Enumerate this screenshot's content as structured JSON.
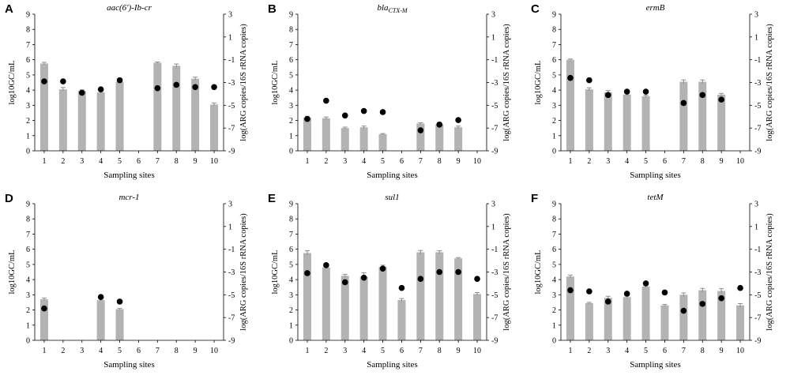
{
  "figure": {
    "chart_data": [
      {
        "type": "bar",
        "panel_label": "A",
        "title": "aac(6')-Ib-cr",
        "title_sub": "",
        "xlabel": "Sampling sites",
        "ylabel": "log10GC/mL",
        "ylabel_right": "log(ARG copies/16S rRNA copies)",
        "categories": [
          "1",
          "2",
          "3",
          "4",
          "5",
          "6",
          "7",
          "8",
          "9",
          "10"
        ],
        "ylim": [
          0,
          9
        ],
        "ylim_right": [
          -9,
          3
        ],
        "yticks": [
          "0",
          "1",
          "2",
          "3",
          "4",
          "5",
          "6",
          "7",
          "8",
          "9"
        ],
        "yticks_right": [
          "-9",
          "-7",
          "-5",
          "-3",
          "-1",
          "1",
          "3"
        ],
        "series": [
          {
            "name": "log10GC/mL",
            "axis": "left",
            "kind": "bar",
            "values": [
              5.75,
              4.05,
              3.95,
              3.85,
              4.55,
              null,
              5.8,
              5.6,
              4.75,
              3.05
            ],
            "errors": [
              0.08,
              0.12,
              0.06,
              0.06,
              0.1,
              null,
              0.05,
              0.12,
              0.1,
              0.1
            ]
          },
          {
            "name": "log(ARG copies/16S rRNA copies)",
            "axis": "right",
            "kind": "dot",
            "values": [
              -2.9,
              -2.9,
              -3.9,
              -3.6,
              -2.8,
              null,
              -3.5,
              -3.2,
              -3.4,
              -3.4
            ]
          }
        ]
      },
      {
        "type": "bar",
        "panel_label": "B",
        "title": "bla",
        "title_sub": "CTX-M",
        "xlabel": "Sampling sites",
        "ylabel": "log10GC/mL",
        "ylabel_right": "log(ARG copies/16S rRNA copies)",
        "categories": [
          "1",
          "2",
          "3",
          "4",
          "5",
          "6",
          "7",
          "8",
          "9",
          "10"
        ],
        "ylim": [
          0,
          9
        ],
        "ylim_right": [
          -9,
          3
        ],
        "yticks": [
          "0",
          "1",
          "2",
          "3",
          "4",
          "5",
          "6",
          "7",
          "8",
          "9"
        ],
        "yticks_right": [
          "-9",
          "-7",
          "-5",
          "-3",
          "-1",
          "1",
          "3"
        ],
        "series": [
          {
            "name": "log10GC/mL",
            "axis": "left",
            "kind": "bar",
            "values": [
              2.2,
              2.15,
              1.5,
              1.55,
              1.1,
              null,
              1.8,
              1.75,
              1.55,
              null
            ],
            "errors": [
              0.08,
              0.08,
              0.06,
              0.08,
              0.04,
              null,
              0.05,
              0.12,
              0.08,
              null
            ]
          },
          {
            "name": "log(ARG copies/16S rRNA copies)",
            "axis": "right",
            "kind": "dot",
            "values": [
              -6.2,
              -4.6,
              -5.9,
              -5.5,
              -5.6,
              null,
              -7.2,
              -6.7,
              -6.3,
              null
            ]
          }
        ]
      },
      {
        "type": "bar",
        "panel_label": "C",
        "title": "ermB",
        "title_sub": "",
        "xlabel": "Sampling sites",
        "ylabel": "log10GC/mL",
        "ylabel_right": "log(ARG copies/16S rRNA copies)",
        "categories": [
          "1",
          "2",
          "3",
          "4",
          "5",
          "6",
          "7",
          "8",
          "9",
          "10"
        ],
        "ylim": [
          0,
          9
        ],
        "ylim_right": [
          -9,
          3
        ],
        "yticks": [
          "0",
          "1",
          "2",
          "3",
          "4",
          "5",
          "6",
          "7",
          "8",
          "9"
        ],
        "yticks_right": [
          "-9",
          "-7",
          "-5",
          "-3",
          "-1",
          "1",
          "3"
        ],
        "series": [
          {
            "name": "log10GC/mL",
            "axis": "left",
            "kind": "bar",
            "values": [
              6.0,
              4.05,
              3.85,
              3.7,
              3.6,
              null,
              4.55,
              4.55,
              3.7,
              null
            ],
            "errors": [
              0.05,
              0.1,
              0.12,
              0.06,
              0.06,
              null,
              0.12,
              0.12,
              0.08,
              null
            ]
          },
          {
            "name": "log(ARG copies/16S rRNA copies)",
            "axis": "right",
            "kind": "dot",
            "values": [
              -2.6,
              -2.8,
              -4.1,
              -3.8,
              -3.8,
              null,
              -4.8,
              -4.1,
              -4.5,
              null
            ]
          }
        ]
      },
      {
        "type": "bar",
        "panel_label": "D",
        "title": "mcr-1",
        "title_sub": "",
        "xlabel": "Sampling sites",
        "ylabel": "log10GC/mL",
        "ylabel_right": "log(ARG copies/16S rRNA copies)",
        "categories": [
          "1",
          "2",
          "3",
          "4",
          "5",
          "6",
          "7",
          "8",
          "9",
          "10"
        ],
        "ylim": [
          0,
          9
        ],
        "ylim_right": [
          -9,
          3
        ],
        "yticks": [
          "0",
          "1",
          "2",
          "3",
          "4",
          "5",
          "6",
          "7",
          "8",
          "9"
        ],
        "yticks_right": [
          "-9",
          "-7",
          "-5",
          "-3",
          "-1",
          "1",
          "3"
        ],
        "series": [
          {
            "name": "log10GC/mL",
            "axis": "left",
            "kind": "bar",
            "values": [
              2.7,
              null,
              null,
              2.65,
              2.05,
              null,
              null,
              null,
              null,
              null
            ],
            "errors": [
              0.08,
              null,
              null,
              0.06,
              0.05,
              null,
              null,
              null,
              null,
              null
            ]
          },
          {
            "name": "log(ARG copies/16S rRNA copies)",
            "axis": "right",
            "kind": "dot",
            "values": [
              -6.2,
              null,
              null,
              -5.2,
              -5.6,
              null,
              null,
              null,
              null,
              null
            ]
          }
        ]
      },
      {
        "type": "bar",
        "panel_label": "E",
        "title": "sul1",
        "title_sub": "",
        "xlabel": "Sampling sites",
        "ylabel": "log10GC/mL",
        "ylabel_right": "log(ARG copies/16S rRNA copies)",
        "categories": [
          "1",
          "2",
          "3",
          "4",
          "5",
          "6",
          "7",
          "8",
          "9",
          "10"
        ],
        "ylim": [
          0,
          9
        ],
        "ylim_right": [
          -9,
          3
        ],
        "yticks": [
          "0",
          "1",
          "2",
          "3",
          "4",
          "5",
          "6",
          "7",
          "8",
          "9"
        ],
        "yticks_right": [
          "-9",
          "-7",
          "-5",
          "-3",
          "-1",
          "1",
          "3"
        ],
        "series": [
          {
            "name": "log10GC/mL",
            "axis": "left",
            "kind": "bar",
            "values": [
              5.75,
              4.8,
              4.25,
              4.2,
              4.85,
              2.65,
              5.8,
              5.8,
              5.4,
              3.05
            ],
            "errors": [
              0.15,
              0.06,
              0.1,
              0.25,
              0.1,
              0.1,
              0.12,
              0.1,
              0.05,
              0.1
            ]
          },
          {
            "name": "log(ARG copies/16S rRNA copies)",
            "axis": "right",
            "kind": "dot",
            "values": [
              -3.1,
              -2.4,
              -3.9,
              -3.5,
              -2.7,
              -4.4,
              -3.6,
              -3.0,
              -3.0,
              -3.6
            ]
          }
        ]
      },
      {
        "type": "bar",
        "panel_label": "F",
        "title": "tetM",
        "title_sub": "",
        "xlabel": "Sampling sites",
        "ylabel": "log10GC/mL",
        "ylabel_right": "log(ARG copies/16S rRNA copies)",
        "categories": [
          "1",
          "2",
          "3",
          "4",
          "5",
          "6",
          "7",
          "8",
          "9",
          "10"
        ],
        "ylim": [
          0,
          9
        ],
        "ylim_right": [
          -9,
          3
        ],
        "yticks": [
          "0",
          "1",
          "2",
          "3",
          "4",
          "5",
          "6",
          "7",
          "8",
          "9"
        ],
        "yticks_right": [
          "-9",
          "-7",
          "-5",
          "-3",
          "-1",
          "1",
          "3"
        ],
        "series": [
          {
            "name": "log10GC/mL",
            "axis": "left",
            "kind": "bar",
            "values": [
              4.2,
              2.45,
              2.8,
              2.85,
              3.55,
              2.3,
              3.0,
              3.3,
              3.25,
              2.3
            ],
            "errors": [
              0.1,
              0.05,
              0.1,
              0.06,
              0.06,
              0.06,
              0.12,
              0.12,
              0.15,
              0.12
            ]
          },
          {
            "name": "log(ARG copies/16S rRNA copies)",
            "axis": "right",
            "kind": "dot",
            "values": [
              -4.6,
              -4.7,
              -5.6,
              -4.9,
              -4.0,
              -4.8,
              -6.4,
              -5.8,
              -5.3,
              -4.4
            ]
          }
        ]
      }
    ]
  }
}
